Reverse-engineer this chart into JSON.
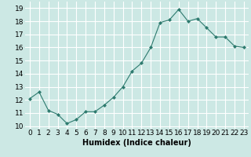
{
  "x": [
    0,
    1,
    2,
    3,
    4,
    5,
    6,
    7,
    8,
    9,
    10,
    11,
    12,
    13,
    14,
    15,
    16,
    17,
    18,
    19,
    20,
    21,
    22,
    23
  ],
  "y": [
    12.1,
    12.6,
    11.2,
    10.9,
    10.2,
    10.5,
    11.1,
    11.1,
    11.6,
    12.2,
    13.0,
    14.2,
    14.8,
    16.0,
    17.9,
    18.1,
    18.9,
    18.0,
    18.2,
    17.5,
    16.8,
    16.8,
    16.1,
    16.0
  ],
  "xlabel": "Humidex (Indice chaleur)",
  "xlim": [
    -0.5,
    23.5
  ],
  "ylim": [
    9.8,
    19.5
  ],
  "yticks": [
    10,
    11,
    12,
    13,
    14,
    15,
    16,
    17,
    18,
    19
  ],
  "xticks": [
    0,
    1,
    2,
    3,
    4,
    5,
    6,
    7,
    8,
    9,
    10,
    11,
    12,
    13,
    14,
    15,
    16,
    17,
    18,
    19,
    20,
    21,
    22,
    23
  ],
  "line_color": "#2d7a6e",
  "marker": "D",
  "marker_size": 2,
  "bg_color": "#cce8e4",
  "grid_color": "#ffffff",
  "xlabel_fontsize": 7,
  "tick_fontsize": 6.5
}
